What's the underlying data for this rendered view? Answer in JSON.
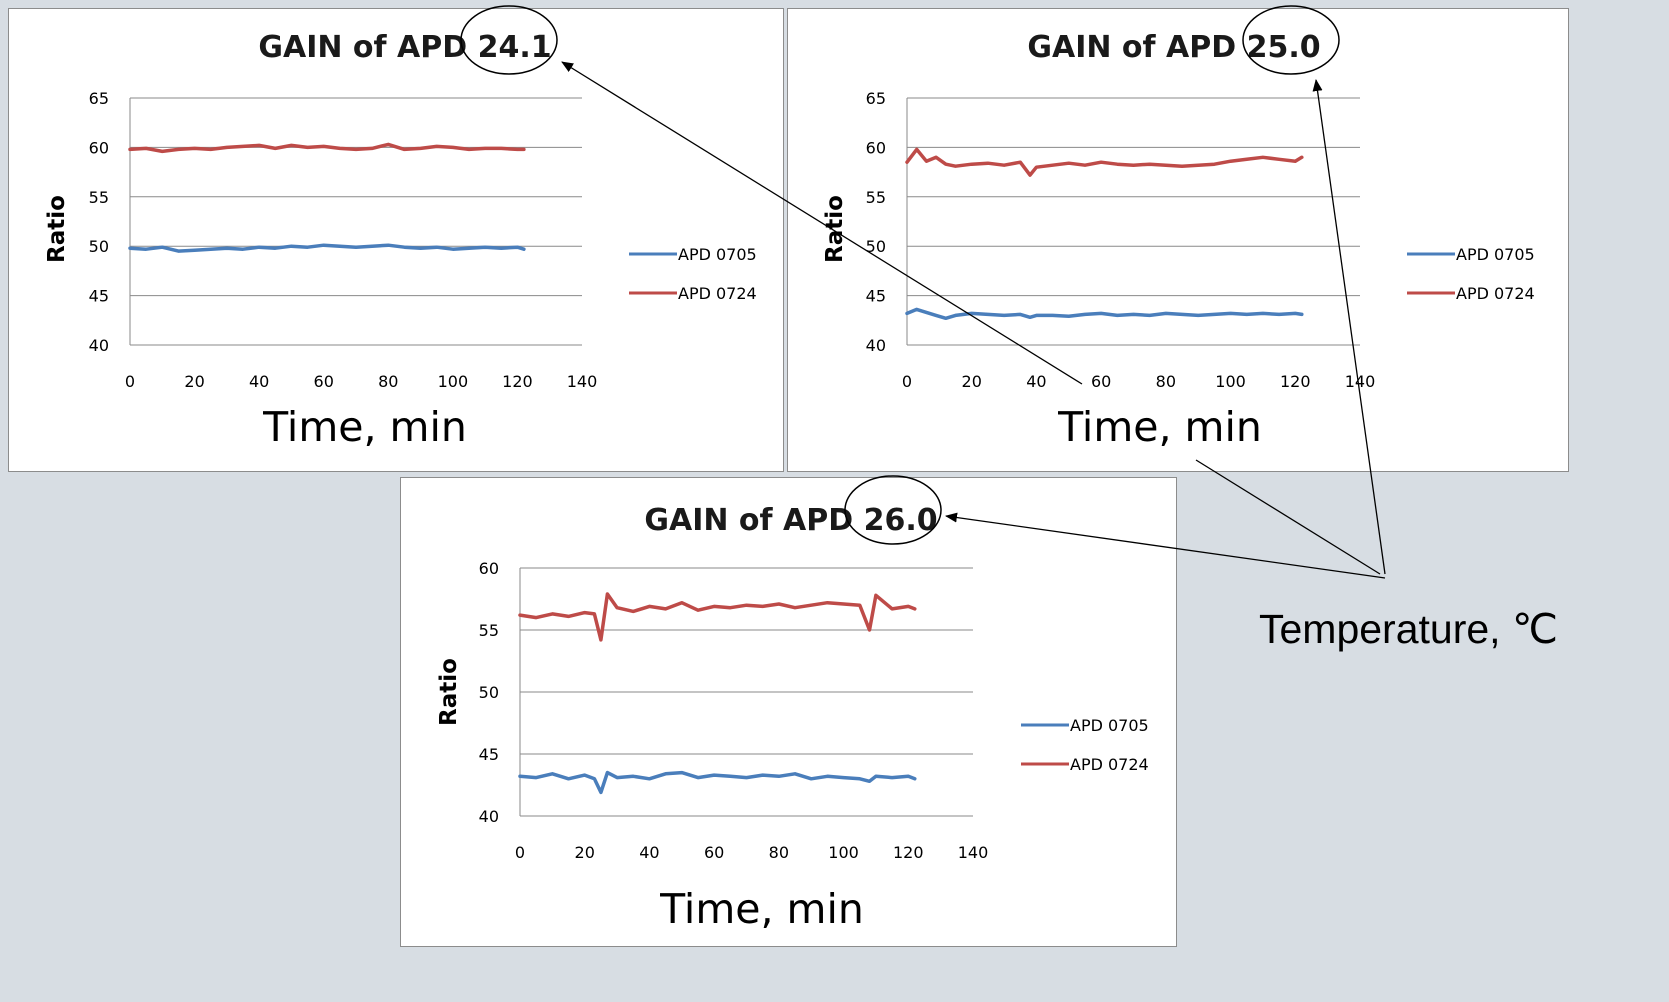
{
  "chart_data": [
    {
      "type": "line",
      "title": "GAIN of APD 24.1",
      "ylabel": "Ratio",
      "xlabel": "Time, min",
      "xlim": [
        0,
        140
      ],
      "ylim": [
        40,
        65
      ],
      "xticks": [
        0,
        20,
        40,
        60,
        80,
        100,
        120,
        140
      ],
      "yticks": [
        40,
        45,
        50,
        55,
        60,
        65
      ],
      "grid": true,
      "legend_position": "right",
      "series": [
        {
          "name": "APD 0705",
          "color": "#4a7ebb",
          "x": [
            0,
            5,
            10,
            15,
            20,
            25,
            30,
            35,
            40,
            45,
            50,
            55,
            60,
            65,
            70,
            75,
            80,
            85,
            90,
            95,
            100,
            105,
            110,
            115,
            120,
            122
          ],
          "y": [
            49.8,
            49.7,
            49.9,
            49.5,
            49.6,
            49.7,
            49.8,
            49.7,
            49.9,
            49.8,
            50.0,
            49.9,
            50.1,
            50.0,
            49.9,
            50.0,
            50.1,
            49.9,
            49.8,
            49.9,
            49.7,
            49.8,
            49.9,
            49.8,
            49.9,
            49.7
          ]
        },
        {
          "name": "APD 0724",
          "color": "#be4b48",
          "x": [
            0,
            5,
            10,
            15,
            20,
            25,
            30,
            35,
            40,
            45,
            50,
            55,
            60,
            65,
            70,
            75,
            80,
            85,
            90,
            95,
            100,
            105,
            110,
            115,
            120,
            122
          ],
          "y": [
            59.8,
            59.9,
            59.6,
            59.8,
            59.9,
            59.8,
            60.0,
            60.1,
            60.2,
            59.9,
            60.2,
            60.0,
            60.1,
            59.9,
            59.8,
            59.9,
            60.3,
            59.8,
            59.9,
            60.1,
            60.0,
            59.8,
            59.9,
            59.9,
            59.8,
            59.8
          ]
        }
      ]
    },
    {
      "type": "line",
      "title": "GAIN of APD 25.0",
      "ylabel": "Ratio",
      "xlabel": "Time, min",
      "xlim": [
        0,
        140
      ],
      "ylim": [
        40,
        65
      ],
      "xticks": [
        0,
        20,
        40,
        60,
        80,
        100,
        120,
        140
      ],
      "yticks": [
        40,
        45,
        50,
        55,
        60,
        65
      ],
      "grid": true,
      "legend_position": "right",
      "series": [
        {
          "name": "APD 0705",
          "color": "#4a7ebb",
          "x": [
            0,
            3,
            6,
            9,
            12,
            15,
            20,
            25,
            30,
            35,
            38,
            40,
            45,
            50,
            55,
            60,
            65,
            70,
            75,
            80,
            85,
            90,
            95,
            100,
            105,
            110,
            115,
            120,
            122
          ],
          "y": [
            43.2,
            43.6,
            43.3,
            43.0,
            42.7,
            43.0,
            43.2,
            43.1,
            43.0,
            43.1,
            42.8,
            43.0,
            43.0,
            42.9,
            43.1,
            43.2,
            43.0,
            43.1,
            43.0,
            43.2,
            43.1,
            43.0,
            43.1,
            43.2,
            43.1,
            43.2,
            43.1,
            43.2,
            43.1
          ]
        },
        {
          "name": "APD 0724",
          "color": "#be4b48",
          "x": [
            0,
            3,
            6,
            9,
            12,
            15,
            20,
            25,
            30,
            35,
            38,
            40,
            45,
            50,
            55,
            60,
            65,
            70,
            75,
            80,
            85,
            90,
            95,
            100,
            105,
            110,
            115,
            120,
            122
          ],
          "y": [
            58.5,
            59.8,
            58.6,
            59.0,
            58.3,
            58.1,
            58.3,
            58.4,
            58.2,
            58.5,
            57.2,
            58.0,
            58.2,
            58.4,
            58.2,
            58.5,
            58.3,
            58.2,
            58.3,
            58.2,
            58.1,
            58.2,
            58.3,
            58.6,
            58.8,
            59.0,
            58.8,
            58.6,
            59.0
          ]
        }
      ]
    },
    {
      "type": "line",
      "title": "GAIN of APD 26.0",
      "ylabel": "Ratio",
      "xlabel": "Time, min",
      "xlim": [
        0,
        140
      ],
      "ylim": [
        40,
        60
      ],
      "xticks": [
        0,
        20,
        40,
        60,
        80,
        100,
        120,
        140
      ],
      "yticks": [
        40,
        45,
        50,
        55,
        60
      ],
      "grid": true,
      "legend_position": "right",
      "series": [
        {
          "name": "APD 0705",
          "color": "#4a7ebb",
          "x": [
            0,
            5,
            10,
            15,
            20,
            23,
            25,
            27,
            30,
            35,
            40,
            45,
            50,
            55,
            60,
            65,
            70,
            75,
            80,
            85,
            90,
            95,
            100,
            105,
            108,
            110,
            115,
            120,
            122
          ],
          "y": [
            43.2,
            43.1,
            43.4,
            43.0,
            43.3,
            43.0,
            41.9,
            43.5,
            43.1,
            43.2,
            43.0,
            43.4,
            43.5,
            43.1,
            43.3,
            43.2,
            43.1,
            43.3,
            43.2,
            43.4,
            43.0,
            43.2,
            43.1,
            43.0,
            42.8,
            43.2,
            43.1,
            43.2,
            43.0
          ]
        },
        {
          "name": "APD 0724",
          "color": "#be4b48",
          "x": [
            0,
            5,
            10,
            15,
            20,
            23,
            25,
            27,
            30,
            35,
            40,
            45,
            50,
            55,
            60,
            65,
            70,
            75,
            80,
            85,
            90,
            95,
            100,
            105,
            108,
            110,
            115,
            120,
            122
          ],
          "y": [
            56.2,
            56.0,
            56.3,
            56.1,
            56.4,
            56.3,
            54.2,
            57.9,
            56.8,
            56.5,
            56.9,
            56.7,
            57.2,
            56.6,
            56.9,
            56.8,
            57.0,
            56.9,
            57.1,
            56.8,
            57.0,
            57.2,
            57.1,
            57.0,
            55.0,
            57.8,
            56.7,
            56.9,
            56.7
          ]
        }
      ]
    }
  ],
  "annotation": {
    "label": "Temperature, ℃"
  }
}
